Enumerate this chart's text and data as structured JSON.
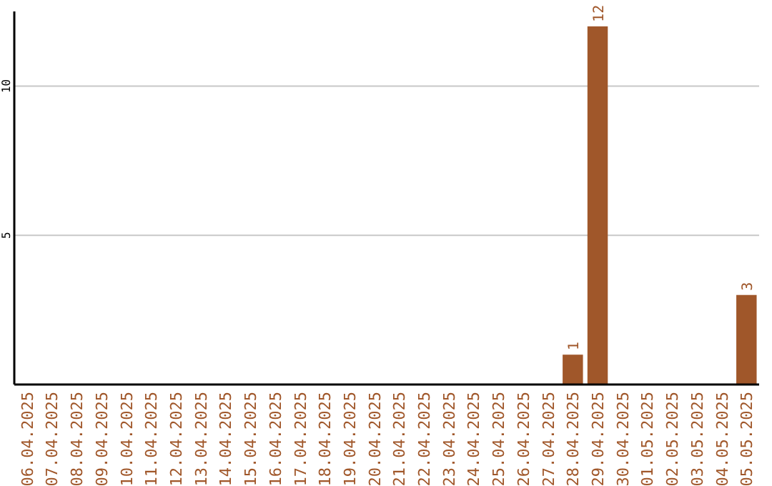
{
  "chart_data": {
    "type": "bar",
    "categories": [
      "06.04.2025",
      "07.04.2025",
      "08.04.2025",
      "09.04.2025",
      "10.04.2025",
      "11.04.2025",
      "12.04.2025",
      "13.04.2025",
      "14.04.2025",
      "15.04.2025",
      "16.04.2025",
      "17.04.2025",
      "18.04.2025",
      "19.04.2025",
      "20.04.2025",
      "21.04.2025",
      "22.04.2025",
      "23.04.2025",
      "24.04.2025",
      "25.04.2025",
      "26.04.2025",
      "27.04.2025",
      "28.04.2025",
      "29.04.2025",
      "30.04.2025",
      "01.05.2025",
      "02.05.2025",
      "03.05.2025",
      "04.05.2025",
      "05.05.2025"
    ],
    "values": [
      0,
      0,
      0,
      0,
      0,
      0,
      0,
      0,
      0,
      0,
      0,
      0,
      0,
      0,
      0,
      0,
      0,
      0,
      0,
      0,
      0,
      0,
      1,
      12,
      0,
      0,
      0,
      0,
      0,
      3
    ],
    "value_labels": [
      null,
      null,
      null,
      null,
      null,
      null,
      null,
      null,
      null,
      null,
      null,
      null,
      null,
      null,
      null,
      null,
      null,
      null,
      null,
      null,
      null,
      null,
      "1",
      "12",
      null,
      null,
      null,
      null,
      null,
      "3"
    ],
    "color": "#a0572a",
    "ylim": [
      0,
      12.5
    ],
    "yticks": [
      5,
      10
    ],
    "grid": "y"
  }
}
